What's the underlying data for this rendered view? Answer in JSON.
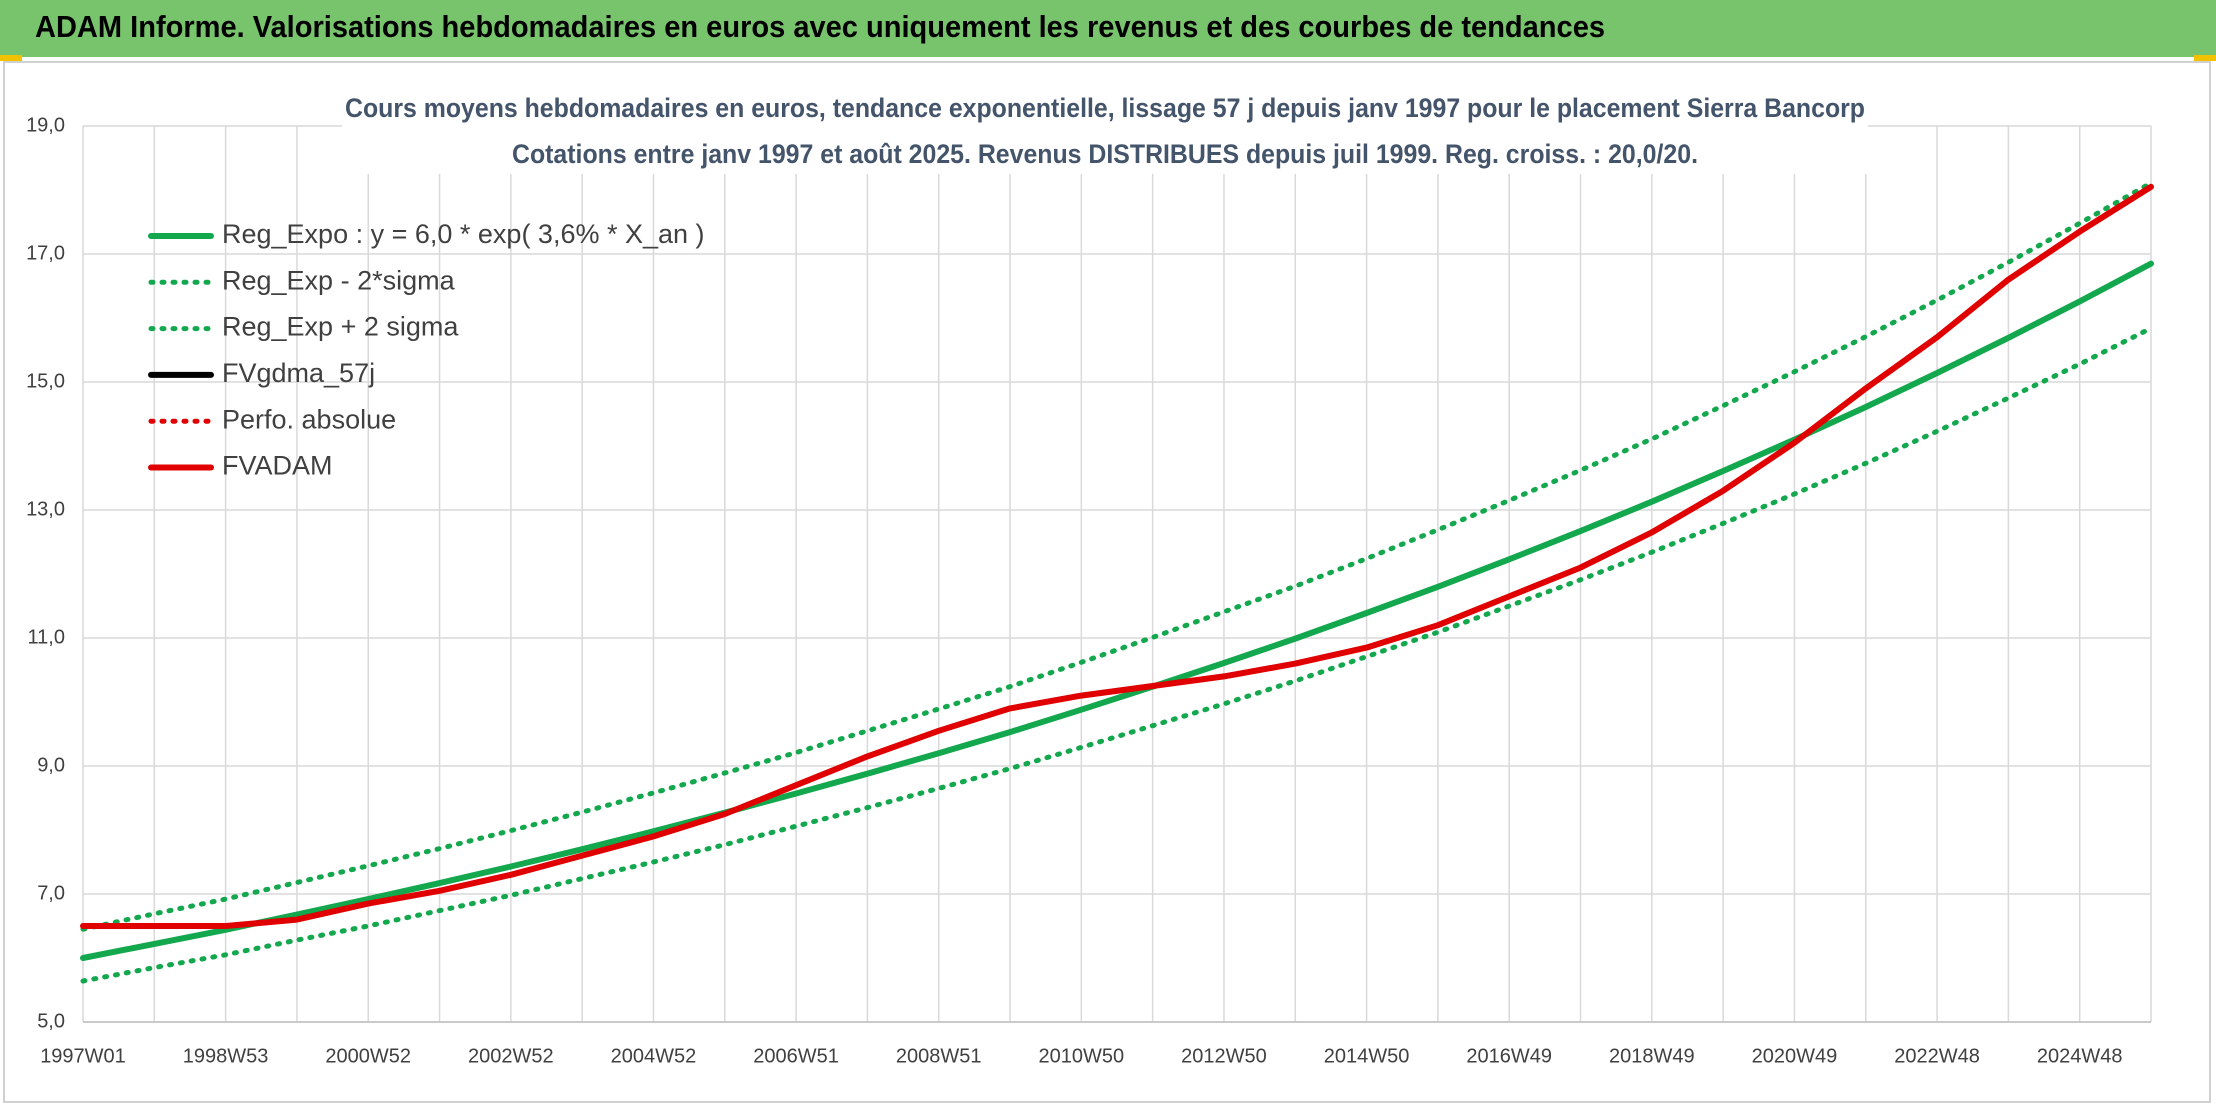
{
  "header": {
    "title": "ADAM Informe. Valorisations hebdomadaires en euros avec uniquement les revenus et des courbes de tendances"
  },
  "chart_data": {
    "type": "line",
    "title": "Cours moyens hebdomadaires en euros, tendance exponentielle, lissage 57 j depuis janv 1997 pour le placement Sierra Bancorp",
    "subtitle": "Cotations entre janv 1997 et août 2025. Revenus DISTRIBUES depuis juil 1999. Reg. croiss. : 20,0/20.",
    "categories": [
      "1997W01",
      null,
      "1998W53",
      null,
      "2000W52",
      null,
      "2002W52",
      null,
      "2004W52",
      null,
      "2006W51",
      null,
      "2008W51",
      null,
      "2010W50",
      null,
      "2012W50",
      null,
      "2014W50",
      null,
      "2016W49",
      null,
      "2018W49",
      null,
      "2020W49",
      null,
      "2022W48",
      null,
      "2024W48",
      null
    ],
    "ylim": [
      5,
      19
    ],
    "yticks": [
      {
        "value": 5,
        "label": "5,0"
      },
      {
        "value": 7,
        "label": "7,0"
      },
      {
        "value": 9,
        "label": "9,0"
      },
      {
        "value": 11,
        "label": "11,0"
      },
      {
        "value": 13,
        "label": "13,0"
      },
      {
        "value": 15,
        "label": "15,0"
      },
      {
        "value": 17,
        "label": "17,0"
      },
      {
        "value": 19,
        "label": "19,0"
      }
    ],
    "grid": true,
    "legend": "upper left",
    "series": [
      {
        "name": "Reg_Expo : y = 6,0 * exp( 3,6% *  X_an )",
        "color": "#13a74e",
        "dash": "solid",
        "values": [
          6.0,
          6.22,
          6.44,
          6.68,
          6.92,
          7.17,
          7.43,
          7.7,
          7.98,
          8.27,
          8.57,
          8.88,
          9.2,
          9.53,
          9.88,
          10.24,
          10.61,
          10.99,
          11.39,
          11.8,
          12.23,
          12.67,
          13.13,
          13.61,
          14.1,
          14.61,
          15.14,
          15.69,
          16.26,
          16.85
        ]
      },
      {
        "name": "Reg_Exp - 2*sigma",
        "color": "#13a74e",
        "dash": "dotted",
        "values": [
          5.64,
          5.85,
          6.05,
          6.28,
          6.5,
          6.74,
          6.98,
          7.24,
          7.5,
          7.77,
          8.06,
          8.35,
          8.65,
          8.96,
          9.29,
          9.63,
          9.97,
          10.33,
          10.71,
          11.09,
          11.5,
          11.91,
          12.34,
          12.79,
          13.25,
          13.73,
          14.23,
          14.75,
          15.28,
          15.84
        ]
      },
      {
        "name": "Reg_Exp + 2 sigma",
        "color": "#13a74e",
        "dash": "dotted",
        "values": [
          6.45,
          6.69,
          6.92,
          7.18,
          7.44,
          7.71,
          7.99,
          8.28,
          8.58,
          8.89,
          9.21,
          9.55,
          9.89,
          10.24,
          10.62,
          11.01,
          11.41,
          11.81,
          12.24,
          12.69,
          13.15,
          13.62,
          14.11,
          14.63,
          15.16,
          15.71,
          16.28,
          16.87,
          17.48,
          18.11
        ]
      },
      {
        "name": "FVgdma_57j",
        "color": "#000000",
        "dash": "solid",
        "values": [
          null,
          null,
          null,
          null,
          null,
          null,
          null,
          null,
          null,
          null,
          null,
          null,
          null,
          null,
          null,
          null,
          null,
          null,
          null,
          null,
          null,
          null,
          null,
          null,
          null,
          null,
          null,
          null,
          null,
          null
        ]
      },
      {
        "name": "Perfo. absolue",
        "color": "#e00000",
        "dash": "dotted",
        "values": [
          null,
          null,
          null,
          null,
          null,
          null,
          null,
          null,
          null,
          null,
          null,
          null,
          null,
          null,
          null,
          null,
          null,
          null,
          null,
          null,
          null,
          null,
          null,
          null,
          null,
          null,
          null,
          null,
          null,
          null
        ]
      },
      {
        "name": "FVADAM",
        "color": "#e00000",
        "dash": "solid",
        "values": [
          6.5,
          6.5,
          6.5,
          6.6,
          6.85,
          7.05,
          7.3,
          7.6,
          7.9,
          8.25,
          8.7,
          9.15,
          9.55,
          9.9,
          10.1,
          10.25,
          10.4,
          10.6,
          10.85,
          11.2,
          11.65,
          12.1,
          12.65,
          13.3,
          14.05,
          14.9,
          15.7,
          16.6,
          17.35,
          18.05
        ]
      }
    ]
  }
}
